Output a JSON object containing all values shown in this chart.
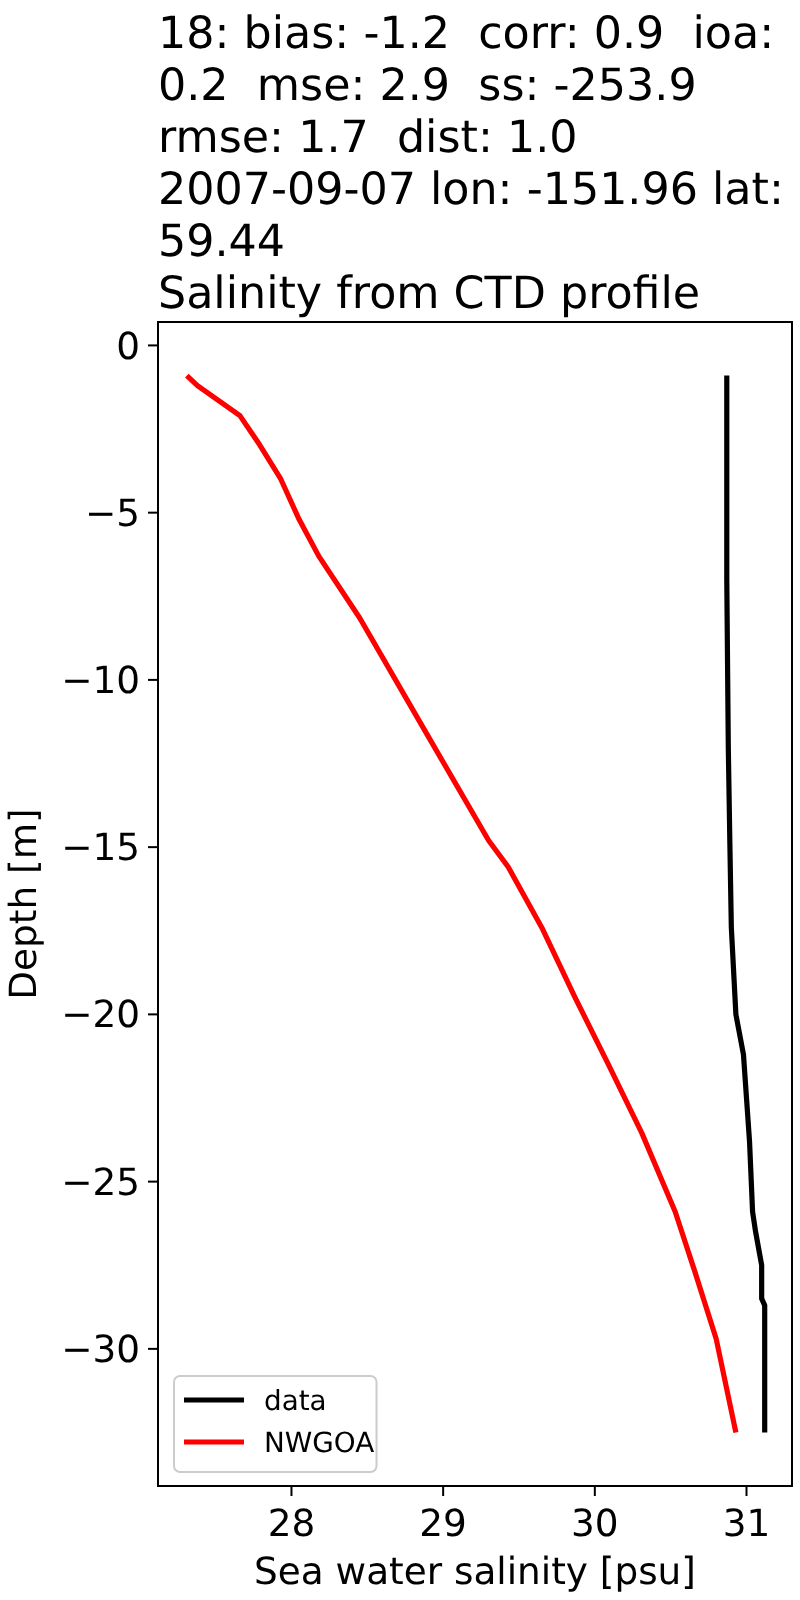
{
  "chart_data": {
    "type": "line",
    "title": "18: bias: -1.2  corr: 0.9  ioa:\n0.2  mse: 2.9  ss: -253.9\nrmse: 1.7  dist: 1.0\n2007-09-07 lon: -151.96 lat:\n59.44\nSalinity from CTD profile",
    "xlabel": "Sea water salinity [psu]",
    "ylabel": "Depth [m]",
    "xlim": [
      27.12,
      31.3
    ],
    "xticks": [
      28,
      29,
      30,
      31
    ],
    "ylim": [
      -34.1,
      0.7
    ],
    "yticks": [
      0,
      -5,
      -10,
      -15,
      -20,
      -25,
      -30
    ],
    "legend": "bottom left",
    "series": [
      {
        "name": "data",
        "color": "#000000",
        "x": [
          30.87,
          30.87,
          30.88,
          30.89,
          30.9,
          30.93,
          30.98,
          31.02,
          31.04,
          31.06,
          31.1,
          31.1,
          31.12,
          31.12
        ],
        "values": [
          -0.9,
          -7.0,
          -12.0,
          -14.8,
          -17.4,
          -20.0,
          -21.2,
          -23.8,
          -25.9,
          -26.5,
          -27.5,
          -28.5,
          -28.7,
          -32.5
        ]
      },
      {
        "name": "NWGOA",
        "color": "#ff0000",
        "x": [
          27.31,
          27.38,
          27.66,
          27.78,
          27.93,
          28.05,
          28.18,
          28.45,
          28.89,
          29.3,
          29.43,
          29.65,
          29.87,
          30.09,
          30.31,
          30.53,
          30.66,
          30.8,
          30.93
        ],
        "values": [
          -0.9,
          -1.2,
          -2.1,
          -2.9,
          -4.0,
          -5.2,
          -6.3,
          -8.15,
          -11.6,
          -14.8,
          -15.6,
          -17.4,
          -19.5,
          -21.5,
          -23.55,
          -25.9,
          -27.7,
          -29.7,
          -32.5
        ]
      }
    ]
  }
}
